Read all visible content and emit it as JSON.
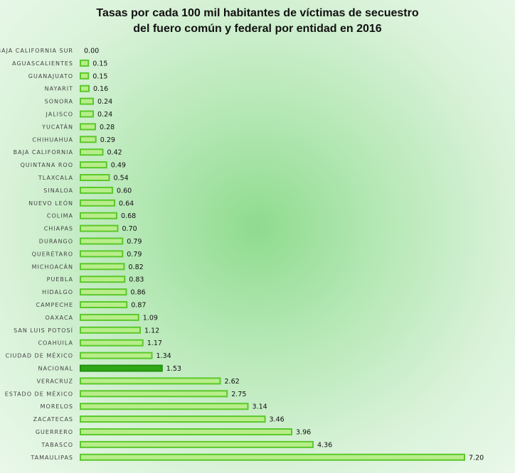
{
  "chart_data": {
    "type": "bar",
    "orientation": "horizontal",
    "title": "Tasas por cada 100 mil habitantes de víctimas de secuestro del fuero común y federal por entidad en 2016",
    "title_lines": [
      "Tasas por cada 100 mil habitantes de víctimas de secuestro",
      "del fuero común y federal por entidad en 2016"
    ],
    "xlabel": "",
    "ylabel": "",
    "categories": [
      "BAJA CALIFORNIA SUR",
      "AGUASCALIENTES",
      "GUANAJUATO",
      "NAYARIT",
      "SONORA",
      "JALISCO",
      "YUCATÁN",
      "CHIHUAHUA",
      "BAJA CALIFORNIA",
      "QUINTANA ROO",
      "TLAXCALA",
      "SINALOA",
      "NUEVO LEÓN",
      "COLIMA",
      "CHIAPAS",
      "DURANGO",
      "QUERÉTARO",
      "MICHOACÁN",
      "PUEBLA",
      "HIDALGO",
      "CAMPECHE",
      "OAXACA",
      "SAN LUIS POTOSÍ",
      "COAHUILA",
      "CIUDAD DE MÉXICO",
      "NACIONAL",
      "VERACRUZ",
      "ESTADO DE MÉXICO",
      "MORELOS",
      "ZACATECAS",
      "GUERRERO",
      "TABASCO",
      "TAMAULIPAS"
    ],
    "values": [
      0.0,
      0.15,
      0.15,
      0.16,
      0.24,
      0.24,
      0.28,
      0.29,
      0.42,
      0.49,
      0.54,
      0.6,
      0.64,
      0.68,
      0.7,
      0.79,
      0.79,
      0.82,
      0.83,
      0.86,
      0.87,
      1.09,
      1.12,
      1.17,
      1.34,
      1.53,
      2.62,
      2.75,
      3.14,
      3.46,
      3.96,
      4.36,
      7.2
    ],
    "value_labels": [
      "0.00",
      "0.15",
      "0.15",
      "0.16",
      "0.24",
      "0.24",
      "0.28",
      "0.29",
      "0.42",
      "0.49",
      "0.54",
      "0.60",
      "0.64",
      "0.68",
      "0.70",
      "0.79",
      "0.79",
      "0.82",
      "0.83",
      "0.86",
      "0.87",
      "1.09",
      "1.12",
      "1.17",
      "1.34",
      "1.53",
      "2.62",
      "2.75",
      "3.14",
      "3.46",
      "3.96",
      "4.36",
      "7.20"
    ],
    "xlim": [
      0,
      7.2
    ],
    "grid": false,
    "legend": "none",
    "highlight_category": "NACIONAL",
    "colors": {
      "bar_fill": "#b8ee8a",
      "bar_stroke": "#5cc82c",
      "highlight_fill": "#2fa816",
      "highlight_stroke": "#239010"
    }
  }
}
